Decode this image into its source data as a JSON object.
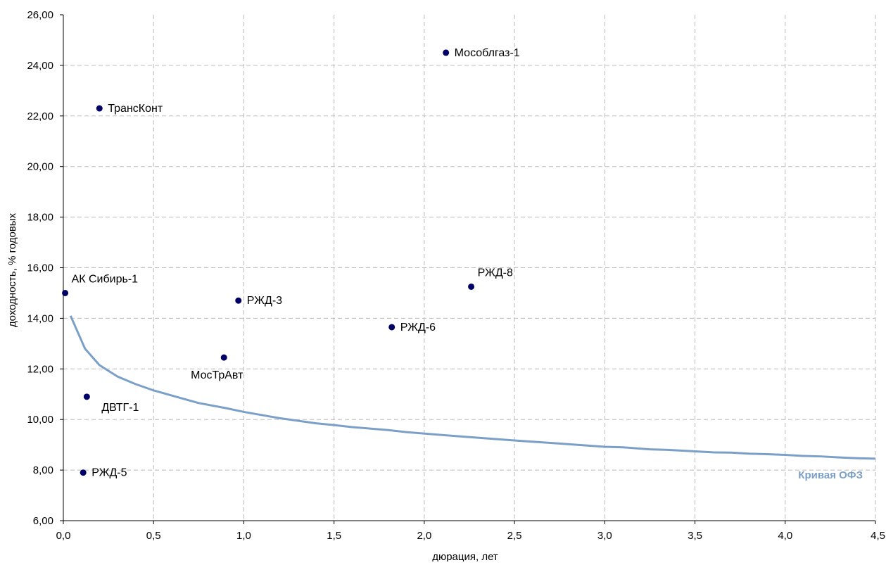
{
  "chart_data": {
    "type": "scatter",
    "title": "",
    "xlabel": "дюрация, лет",
    "ylabel": "доходность, % годовых",
    "xlim": [
      0,
      4.5
    ],
    "ylim": [
      6,
      26
    ],
    "x_ticks": [
      0,
      0.5,
      1.0,
      1.5,
      2.0,
      2.5,
      3.0,
      3.5,
      4.0,
      4.5
    ],
    "x_tick_labels": [
      "0,0",
      "0,5",
      "1,0",
      "1,5",
      "2,0",
      "2,5",
      "3,0",
      "3,5",
      "4,0",
      "4,5"
    ],
    "y_ticks": [
      6,
      8,
      10,
      12,
      14,
      16,
      18,
      20,
      22,
      24,
      26
    ],
    "y_tick_labels": [
      "6,00",
      "8,00",
      "10,00",
      "12,00",
      "14,00",
      "16,00",
      "18,00",
      "20,00",
      "22,00",
      "24,00",
      "26,00"
    ],
    "grid": true,
    "colors": {
      "points": "#000066",
      "curve": "#7BA0C8",
      "grid": "#BBBBBB",
      "axis": "#000000"
    },
    "points": [
      {
        "label": "АК Сибирь-1",
        "x": 0.01,
        "y": 15.0,
        "label_pos": "above-right"
      },
      {
        "label": "ТрансКонт",
        "x": 0.2,
        "y": 22.3,
        "label_pos": "right"
      },
      {
        "label": "Мособлгаз-1",
        "x": 2.12,
        "y": 24.5,
        "label_pos": "right"
      },
      {
        "label": "РЖД-3",
        "x": 0.97,
        "y": 14.7,
        "label_pos": "right"
      },
      {
        "label": "РЖД-6",
        "x": 1.82,
        "y": 13.65,
        "label_pos": "right"
      },
      {
        "label": "РЖД-8",
        "x": 2.26,
        "y": 15.25,
        "label_pos": "above-right"
      },
      {
        "label": "МосТрАвт",
        "x": 0.89,
        "y": 12.45,
        "label_pos": "below"
      },
      {
        "label": "ДВТГ-1",
        "x": 0.13,
        "y": 10.9,
        "label_pos": "below-right"
      },
      {
        "label": "РЖД-5",
        "x": 0.11,
        "y": 7.9,
        "label_pos": "right"
      }
    ],
    "curve": {
      "name": "Кривая ОФЗ",
      "x": [
        0.04,
        0.12,
        0.2,
        0.3,
        0.4,
        0.5,
        0.6,
        0.75,
        0.9,
        1.0,
        1.2,
        1.4,
        1.5,
        1.6,
        1.8,
        1.9,
        2.2,
        2.5,
        2.75,
        3.0,
        3.1,
        3.25,
        3.35,
        3.6,
        3.7,
        3.8,
        3.9,
        4.0,
        4.1,
        4.2,
        4.3,
        4.4,
        4.5
      ],
      "y": [
        14.1,
        12.8,
        12.15,
        11.7,
        11.4,
        11.15,
        10.95,
        10.65,
        10.45,
        10.3,
        10.05,
        9.85,
        9.78,
        9.7,
        9.58,
        9.5,
        9.33,
        9.17,
        9.05,
        8.92,
        8.9,
        8.82,
        8.8,
        8.7,
        8.69,
        8.65,
        8.63,
        8.6,
        8.56,
        8.54,
        8.5,
        8.47,
        8.45
      ]
    }
  }
}
